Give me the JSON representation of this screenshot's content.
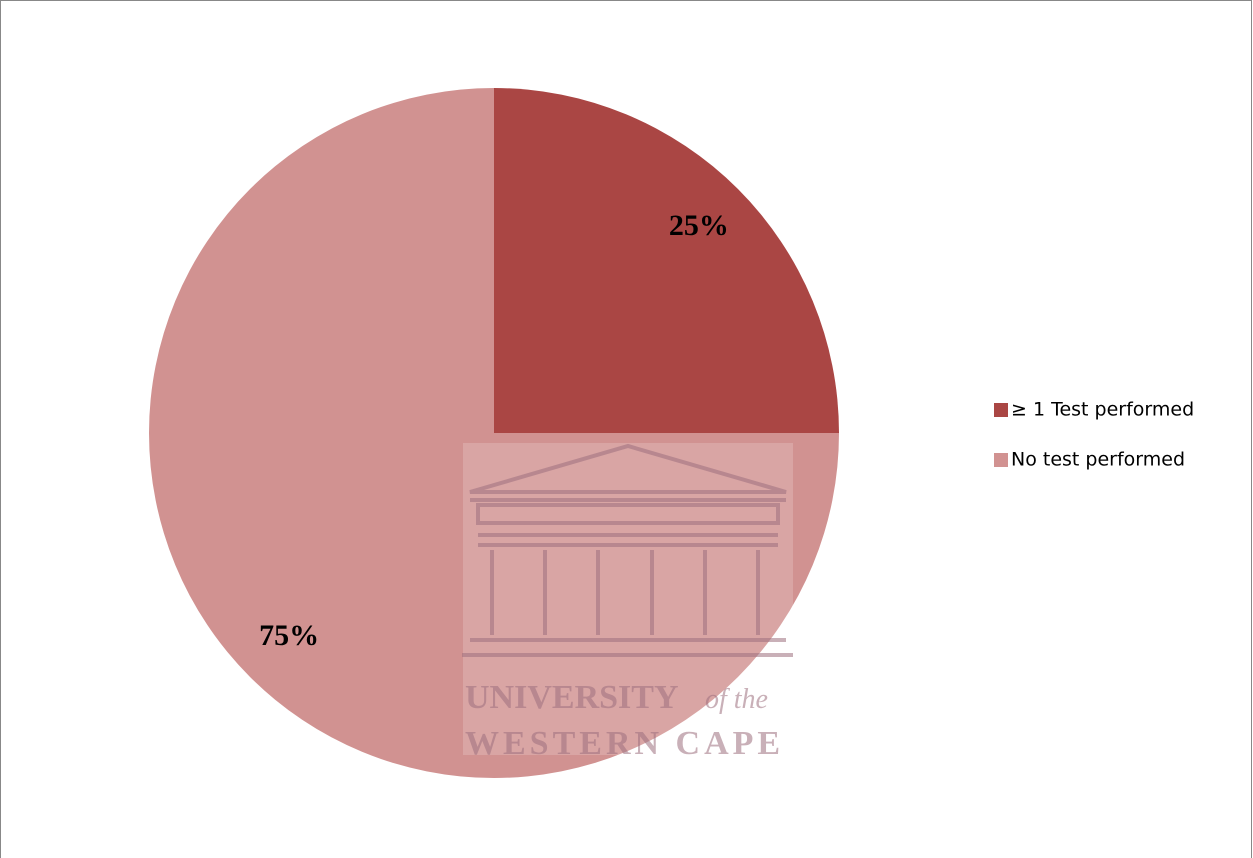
{
  "chart_data": {
    "type": "pie",
    "categories": [
      "≥ 1 Test performed",
      "No test performed"
    ],
    "values": [
      25,
      75
    ],
    "value_labels": [
      "25%",
      "75%"
    ],
    "colors": [
      "#aa4644",
      "#d19291"
    ],
    "legend": "right",
    "watermark": [
      "UNIVERSITY",
      "of the",
      "WESTERN CAPE"
    ]
  }
}
